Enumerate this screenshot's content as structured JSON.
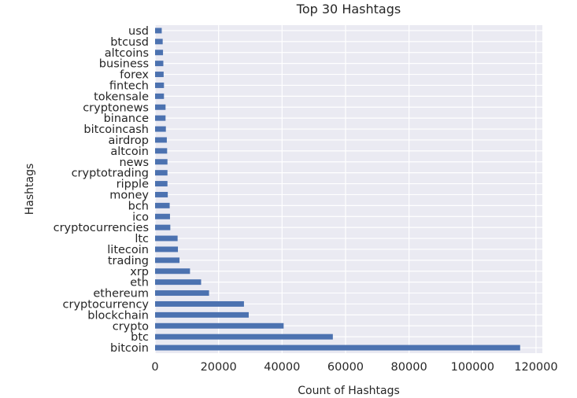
{
  "chart_data": {
    "type": "bar",
    "orientation": "horizontal",
    "title": "Top 30 Hashtags",
    "xlabel": "Count of Hashtags",
    "ylabel": "Hashtags",
    "xlim": [
      0,
      122000
    ],
    "xticks": [
      0,
      20000,
      40000,
      60000,
      80000,
      100000,
      120000
    ],
    "grid": true,
    "legend": "none",
    "bar_color": "#4c72b0",
    "background_color": "#eaeaf2",
    "categories": [
      "bitcoin",
      "btc",
      "crypto",
      "blockchain",
      "cryptocurrency",
      "ethereum",
      "eth",
      "xrp",
      "trading",
      "litecoin",
      "ltc",
      "cryptocurrencies",
      "ico",
      "bch",
      "money",
      "ripple",
      "cryptotrading",
      "news",
      "altcoin",
      "airdrop",
      "bitcoincash",
      "binance",
      "cryptonews",
      "tokensale",
      "fintech",
      "forex",
      "business",
      "altcoins",
      "btcusd",
      "usd"
    ],
    "values": [
      115000,
      56000,
      40500,
      29500,
      28000,
      17000,
      14500,
      11000,
      7700,
      7200,
      7100,
      4800,
      4700,
      4600,
      4000,
      3900,
      3900,
      3900,
      3800,
      3700,
      3400,
      3300,
      3300,
      2800,
      2800,
      2700,
      2600,
      2500,
      2400,
      2100
    ]
  }
}
